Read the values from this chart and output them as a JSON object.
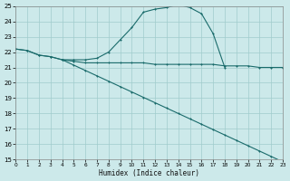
{
  "xlabel": "Humidex (Indice chaleur)",
  "bg_color": "#cce9ea",
  "grid_color": "#a0cccc",
  "line_color": "#1a6b6b",
  "xlim": [
    0,
    23
  ],
  "ylim": [
    15,
    25
  ],
  "xticks": [
    0,
    1,
    2,
    3,
    4,
    5,
    6,
    7,
    8,
    9,
    10,
    11,
    12,
    13,
    14,
    15,
    16,
    17,
    18,
    19,
    20,
    21,
    22,
    23
  ],
  "yticks": [
    15,
    16,
    17,
    18,
    19,
    20,
    21,
    22,
    23,
    24,
    25
  ],
  "line1_x": [
    0,
    1,
    2,
    3,
    4,
    5,
    6,
    7,
    8,
    9,
    10,
    11,
    12,
    13,
    14,
    15,
    16,
    17,
    18
  ],
  "line1_y": [
    22.2,
    22.1,
    21.8,
    21.7,
    21.5,
    21.5,
    21.5,
    21.6,
    22.0,
    22.8,
    23.6,
    24.6,
    24.8,
    24.9,
    25.1,
    24.9,
    24.5,
    23.2,
    21.0
  ],
  "line2_x": [
    0,
    1,
    2,
    3,
    4,
    5,
    6,
    7,
    8,
    9,
    10,
    11,
    12,
    13,
    14,
    15,
    16,
    17,
    18,
    19,
    20,
    21,
    22,
    23
  ],
  "line2_y": [
    22.2,
    22.1,
    21.8,
    21.7,
    21.5,
    21.4,
    21.3,
    21.3,
    21.3,
    21.3,
    21.3,
    21.3,
    21.2,
    21.2,
    21.2,
    21.2,
    21.2,
    21.2,
    21.1,
    21.1,
    21.1,
    21.0,
    21.0,
    21.0
  ],
  "line3_x": [
    4,
    5,
    6,
    7,
    8,
    9,
    10,
    11,
    12,
    13,
    14,
    15,
    16,
    17,
    18,
    19,
    20,
    21,
    22,
    23
  ],
  "line3_y": [
    21.5,
    21.15,
    20.8,
    20.45,
    20.1,
    19.75,
    19.4,
    19.05,
    18.7,
    18.35,
    18.0,
    17.65,
    17.3,
    16.95,
    16.6,
    16.25,
    15.9,
    15.55,
    15.2,
    14.85
  ]
}
